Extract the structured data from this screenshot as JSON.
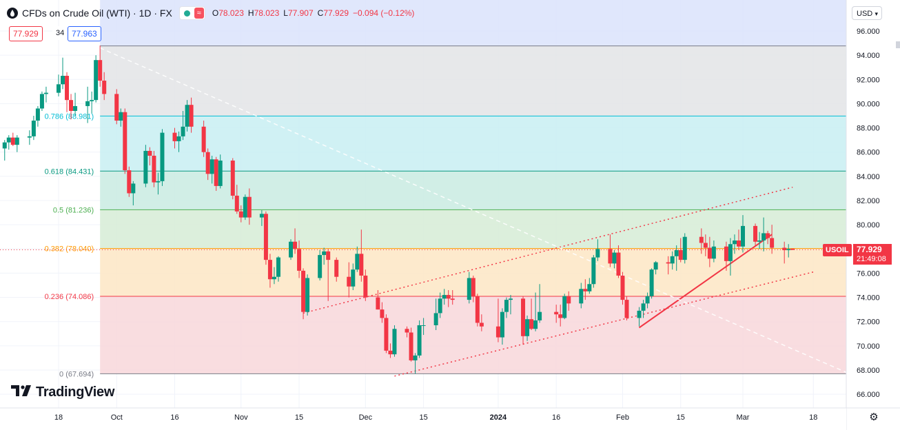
{
  "header": {
    "symbol": "CFDs on Crude Oil (WTI) · 1D · FX",
    "open_key": "O",
    "open": "78.023",
    "high_key": "H",
    "high": "78.023",
    "low_key": "L",
    "low": "77.907",
    "close_key": "C",
    "close": "77.929",
    "change": "−0.094 (−0.12%)",
    "approx_icon": "≈"
  },
  "trade": {
    "sell": "77.929",
    "spread": "34",
    "buy": "77.963"
  },
  "currency": "USD",
  "brand": "TradingView",
  "last": {
    "symbol": "USOIL",
    "price": "77.929",
    "countdown": "21:49:08"
  },
  "colors": {
    "up": "#089981",
    "down": "#f23645",
    "accent": "#2962ff"
  },
  "chart_data": {
    "type": "candlestick",
    "y_axis": {
      "ticks": [
        66,
        68,
        70,
        72,
        74,
        76,
        78,
        80,
        82,
        84,
        86,
        88,
        90,
        92,
        94,
        96
      ],
      "range": [
        65,
        97
      ],
      "position": "right"
    },
    "x_axis": {
      "labels": [
        {
          "text": "18",
          "date": "2023-09-18"
        },
        {
          "text": "Oct",
          "date": "2023-10-02"
        },
        {
          "text": "16",
          "date": "2023-10-16"
        },
        {
          "text": "Nov",
          "date": "2023-11-01"
        },
        {
          "text": "15",
          "date": "2023-11-15"
        },
        {
          "text": "Dec",
          "date": "2023-12-01"
        },
        {
          "text": "15",
          "date": "2023-12-15"
        },
        {
          "text": "2024",
          "date": "2024-01-02"
        },
        {
          "text": "16",
          "date": "2024-01-16"
        },
        {
          "text": "Feb",
          "date": "2024-02-01"
        },
        {
          "text": "15",
          "date": "2024-02-15"
        },
        {
          "text": "Mar",
          "date": "2024-03-01"
        },
        {
          "text": "18",
          "date": "2024-03-18"
        }
      ]
    },
    "fibonacci": {
      "levels": [
        {
          "ratio": "0",
          "price": 67.694,
          "label": "0 (67.694)",
          "color": "#787b86",
          "fill": "#f8d7da"
        },
        {
          "ratio": "0.236",
          "price": 74.086,
          "label": "0.236 (74.086)",
          "color": "#f23645",
          "fill": "#fde6c4"
        },
        {
          "ratio": "0.382",
          "price": 78.04,
          "label": "0.382 (78.040)",
          "color": "#ff9800",
          "fill": "#d6ecd6"
        },
        {
          "ratio": "0.5",
          "price": 81.236,
          "label": "0.5 (81.236)",
          "color": "#4caf50",
          "fill": "#c9ebe2"
        },
        {
          "ratio": "0.618",
          "price": 84.431,
          "label": "0.618 (84.431)",
          "color": "#089981",
          "fill": "#c8eff2"
        },
        {
          "ratio": "0.786",
          "price": 88.981,
          "label": "0.786 (88.981)",
          "color": "#00bcd4",
          "fill": "#e3e4e6"
        },
        {
          "ratio": "1",
          "price": 94.77,
          "label": "",
          "color": "#787b86",
          "fill": "#dbe3fb"
        }
      ],
      "start_date": "2023-09-28",
      "end_date": "2024-03-26"
    },
    "candles": [
      {
        "d": "2023-09-05",
        "o": 86.3,
        "h": 87.0,
        "l": 85.3,
        "c": 86.8
      },
      {
        "d": "2023-09-06",
        "o": 86.8,
        "h": 87.4,
        "l": 86.2,
        "c": 87.2
      },
      {
        "d": "2023-09-07",
        "o": 87.2,
        "h": 87.6,
        "l": 86.5,
        "c": 86.6
      },
      {
        "d": "2023-09-08",
        "o": 86.6,
        "h": 87.4,
        "l": 86.0,
        "c": 87.2
      },
      {
        "d": "2023-09-11",
        "o": 87.2,
        "h": 87.8,
        "l": 86.6,
        "c": 87.3
      },
      {
        "d": "2023-09-12",
        "o": 87.3,
        "h": 89.0,
        "l": 87.0,
        "c": 88.6
      },
      {
        "d": "2023-09-13",
        "o": 88.6,
        "h": 89.8,
        "l": 88.1,
        "c": 89.6
      },
      {
        "d": "2023-09-14",
        "o": 89.6,
        "h": 91.0,
        "l": 89.4,
        "c": 90.8
      },
      {
        "d": "2023-09-15",
        "o": 90.8,
        "h": 91.4,
        "l": 90.1,
        "c": 90.9
      },
      {
        "d": "2023-09-18",
        "o": 90.9,
        "h": 92.4,
        "l": 90.6,
        "c": 91.6
      },
      {
        "d": "2023-09-19",
        "o": 91.6,
        "h": 93.8,
        "l": 91.2,
        "c": 92.3
      },
      {
        "d": "2023-09-20",
        "o": 92.3,
        "h": 92.6,
        "l": 89.3,
        "c": 90.3
      },
      {
        "d": "2023-09-21",
        "o": 90.3,
        "h": 90.8,
        "l": 88.7,
        "c": 89.4
      },
      {
        "d": "2023-09-22",
        "o": 89.4,
        "h": 90.9,
        "l": 89.0,
        "c": 89.8
      },
      {
        "d": "2023-09-25",
        "o": 89.8,
        "h": 91.4,
        "l": 88.4,
        "c": 90.2
      },
      {
        "d": "2023-09-26",
        "o": 90.2,
        "h": 91.0,
        "l": 89.2,
        "c": 90.3
      },
      {
        "d": "2023-09-27",
        "o": 90.3,
        "h": 94.0,
        "l": 90.1,
        "c": 93.6
      },
      {
        "d": "2023-09-28",
        "o": 93.6,
        "h": 94.8,
        "l": 91.4,
        "c": 91.9
      },
      {
        "d": "2023-09-29",
        "o": 91.9,
        "h": 92.6,
        "l": 90.3,
        "c": 90.8
      },
      {
        "d": "2023-10-02",
        "o": 90.8,
        "h": 91.2,
        "l": 88.3,
        "c": 88.6
      },
      {
        "d": "2023-10-03",
        "o": 88.6,
        "h": 89.6,
        "l": 88.1,
        "c": 89.3
      },
      {
        "d": "2023-10-04",
        "o": 89.3,
        "h": 89.6,
        "l": 84.2,
        "c": 84.5
      },
      {
        "d": "2023-10-05",
        "o": 84.5,
        "h": 84.8,
        "l": 82.3,
        "c": 82.6
      },
      {
        "d": "2023-10-06",
        "o": 82.6,
        "h": 83.6,
        "l": 81.6,
        "c": 83.4
      },
      {
        "d": "2023-10-09",
        "o": 83.4,
        "h": 86.6,
        "l": 83.1,
        "c": 86.1
      },
      {
        "d": "2023-10-10",
        "o": 86.1,
        "h": 86.4,
        "l": 84.9,
        "c": 85.7
      },
      {
        "d": "2023-10-11",
        "o": 85.7,
        "h": 86.1,
        "l": 83.1,
        "c": 83.5
      },
      {
        "d": "2023-10-12",
        "o": 83.5,
        "h": 84.3,
        "l": 82.5,
        "c": 83.6
      },
      {
        "d": "2023-10-13",
        "o": 83.6,
        "h": 87.9,
        "l": 83.2,
        "c": 87.6
      },
      {
        "d": "2023-10-16",
        "o": 87.6,
        "h": 88.0,
        "l": 86.3,
        "c": 86.9
      },
      {
        "d": "2023-10-17",
        "o": 86.9,
        "h": 87.7,
        "l": 86.0,
        "c": 87.3
      },
      {
        "d": "2023-10-18",
        "o": 87.3,
        "h": 89.4,
        "l": 87.0,
        "c": 88.1
      },
      {
        "d": "2023-10-19",
        "o": 88.1,
        "h": 90.3,
        "l": 87.7,
        "c": 89.9
      },
      {
        "d": "2023-10-20",
        "o": 89.9,
        "h": 90.5,
        "l": 87.6,
        "c": 88.1
      },
      {
        "d": "2023-10-23",
        "o": 88.1,
        "h": 88.6,
        "l": 85.6,
        "c": 86.0
      },
      {
        "d": "2023-10-24",
        "o": 86.0,
        "h": 86.3,
        "l": 83.7,
        "c": 84.2
      },
      {
        "d": "2023-10-25",
        "o": 84.2,
        "h": 85.7,
        "l": 83.4,
        "c": 85.4
      },
      {
        "d": "2023-10-26",
        "o": 85.4,
        "h": 85.6,
        "l": 82.8,
        "c": 83.2
      },
      {
        "d": "2023-10-27",
        "o": 83.2,
        "h": 85.8,
        "l": 83.0,
        "c": 85.3
      },
      {
        "d": "2023-10-30",
        "o": 85.3,
        "h": 85.5,
        "l": 82.1,
        "c": 82.4
      },
      {
        "d": "2023-10-31",
        "o": 82.4,
        "h": 83.3,
        "l": 80.9,
        "c": 81.1
      },
      {
        "d": "2023-11-01",
        "o": 81.1,
        "h": 81.6,
        "l": 80.2,
        "c": 80.6
      },
      {
        "d": "2023-11-02",
        "o": 80.6,
        "h": 82.5,
        "l": 80.4,
        "c": 82.3
      },
      {
        "d": "2023-11-03",
        "o": 82.3,
        "h": 83.0,
        "l": 80.0,
        "c": 80.6
      },
      {
        "d": "2023-11-06",
        "o": 80.6,
        "h": 81.2,
        "l": 79.9,
        "c": 80.9
      },
      {
        "d": "2023-11-07",
        "o": 80.9,
        "h": 81.1,
        "l": 76.7,
        "c": 77.1
      },
      {
        "d": "2023-11-08",
        "o": 77.1,
        "h": 77.6,
        "l": 74.8,
        "c": 75.5
      },
      {
        "d": "2023-11-09",
        "o": 75.5,
        "h": 76.5,
        "l": 75.1,
        "c": 75.7
      },
      {
        "d": "2023-11-10",
        "o": 75.7,
        "h": 77.4,
        "l": 75.3,
        "c": 77.3
      },
      {
        "d": "2023-11-13",
        "o": 77.3,
        "h": 78.8,
        "l": 77.1,
        "c": 78.6
      },
      {
        "d": "2023-11-14",
        "o": 78.6,
        "h": 79.7,
        "l": 77.6,
        "c": 78.0
      },
      {
        "d": "2023-11-15",
        "o": 78.0,
        "h": 78.7,
        "l": 75.6,
        "c": 76.2
      },
      {
        "d": "2023-11-16",
        "o": 76.2,
        "h": 76.4,
        "l": 72.2,
        "c": 72.8
      },
      {
        "d": "2023-11-17",
        "o": 72.8,
        "h": 75.9,
        "l": 72.5,
        "c": 75.6
      },
      {
        "d": "2023-11-20",
        "o": 75.6,
        "h": 77.9,
        "l": 75.4,
        "c": 77.5
      },
      {
        "d": "2023-11-21",
        "o": 77.5,
        "h": 78.1,
        "l": 76.7,
        "c": 77.8
      },
      {
        "d": "2023-11-22",
        "o": 77.8,
        "h": 78.0,
        "l": 73.7,
        "c": 77.1
      },
      {
        "d": "2023-11-24",
        "o": 77.1,
        "h": 77.3,
        "l": 75.3,
        "c": 75.7
      },
      {
        "d": "2023-11-27",
        "o": 75.7,
        "h": 76.9,
        "l": 74.0,
        "c": 74.9
      },
      {
        "d": "2023-11-28",
        "o": 74.9,
        "h": 76.8,
        "l": 74.6,
        "c": 76.3
      },
      {
        "d": "2023-11-29",
        "o": 76.3,
        "h": 78.2,
        "l": 76.1,
        "c": 77.6
      },
      {
        "d": "2023-11-30",
        "o": 77.6,
        "h": 79.6,
        "l": 75.3,
        "c": 75.8
      },
      {
        "d": "2023-12-01",
        "o": 75.8,
        "h": 76.3,
        "l": 73.7,
        "c": 74.0
      },
      {
        "d": "2023-12-04",
        "o": 74.0,
        "h": 74.6,
        "l": 73.0,
        "c": 73.0
      },
      {
        "d": "2023-12-05",
        "o": 73.0,
        "h": 73.6,
        "l": 71.9,
        "c": 72.3
      },
      {
        "d": "2023-12-06",
        "o": 72.3,
        "h": 72.6,
        "l": 69.4,
        "c": 69.6
      },
      {
        "d": "2023-12-07",
        "o": 69.6,
        "h": 70.2,
        "l": 69.0,
        "c": 69.3
      },
      {
        "d": "2023-12-08",
        "o": 69.3,
        "h": 71.7,
        "l": 69.1,
        "c": 71.4
      },
      {
        "d": "2023-12-11",
        "o": 71.4,
        "h": 71.6,
        "l": 70.7,
        "c": 71.1
      },
      {
        "d": "2023-12-12",
        "o": 71.1,
        "h": 71.5,
        "l": 68.7,
        "c": 68.8
      },
      {
        "d": "2023-12-13",
        "o": 68.8,
        "h": 69.4,
        "l": 67.7,
        "c": 69.2
      },
      {
        "d": "2023-12-14",
        "o": 69.2,
        "h": 72.1,
        "l": 69.0,
        "c": 71.7
      },
      {
        "d": "2023-12-15",
        "o": 71.7,
        "h": 72.3,
        "l": 70.9,
        "c": 71.7
      },
      {
        "d": "2023-12-18",
        "o": 71.7,
        "h": 73.9,
        "l": 71.3,
        "c": 72.7
      },
      {
        "d": "2023-12-19",
        "o": 72.7,
        "h": 74.4,
        "l": 72.3,
        "c": 73.9
      },
      {
        "d": "2023-12-20",
        "o": 73.9,
        "h": 74.7,
        "l": 73.4,
        "c": 74.2
      },
      {
        "d": "2023-12-21",
        "o": 74.2,
        "h": 74.6,
        "l": 73.2,
        "c": 73.9
      },
      {
        "d": "2023-12-22",
        "o": 73.9,
        "h": 74.6,
        "l": 73.4,
        "c": 73.8
      },
      {
        "d": "2023-12-26",
        "o": 73.8,
        "h": 76.1,
        "l": 73.5,
        "c": 75.6
      },
      {
        "d": "2023-12-27",
        "o": 75.6,
        "h": 75.8,
        "l": 73.6,
        "c": 74.1
      },
      {
        "d": "2023-12-28",
        "o": 74.1,
        "h": 74.3,
        "l": 71.6,
        "c": 71.9
      },
      {
        "d": "2023-12-29",
        "o": 71.9,
        "h": 72.6,
        "l": 71.2,
        "c": 71.6
      },
      {
        "d": "2024-01-02",
        "o": 71.6,
        "h": 73.9,
        "l": 70.3,
        "c": 70.7
      },
      {
        "d": "2024-01-03",
        "o": 70.7,
        "h": 73.1,
        "l": 70.1,
        "c": 72.8
      },
      {
        "d": "2024-01-04",
        "o": 72.8,
        "h": 74.0,
        "l": 72.3,
        "c": 73.8
      },
      {
        "d": "2024-01-05",
        "o": 73.8,
        "h": 74.2,
        "l": 72.6,
        "c": 73.9
      },
      {
        "d": "2024-01-08",
        "o": 73.9,
        "h": 74.1,
        "l": 70.1,
        "c": 70.8
      },
      {
        "d": "2024-01-09",
        "o": 70.8,
        "h": 72.5,
        "l": 70.4,
        "c": 72.2
      },
      {
        "d": "2024-01-10",
        "o": 72.2,
        "h": 73.9,
        "l": 71.3,
        "c": 71.4
      },
      {
        "d": "2024-01-11",
        "o": 71.4,
        "h": 74.4,
        "l": 71.2,
        "c": 72.1
      },
      {
        "d": "2024-01-12",
        "o": 72.1,
        "h": 75.1,
        "l": 71.9,
        "c": 72.8
      },
      {
        "d": "2024-01-16",
        "o": 72.8,
        "h": 73.4,
        "l": 71.9,
        "c": 72.6
      },
      {
        "d": "2024-01-17",
        "o": 72.6,
        "h": 73.4,
        "l": 71.6,
        "c": 72.3
      },
      {
        "d": "2024-01-18",
        "o": 72.3,
        "h": 74.3,
        "l": 72.2,
        "c": 74.1
      },
      {
        "d": "2024-01-19",
        "o": 74.1,
        "h": 74.5,
        "l": 72.9,
        "c": 73.5
      },
      {
        "d": "2024-01-22",
        "o": 73.5,
        "h": 75.2,
        "l": 73.1,
        "c": 74.7
      },
      {
        "d": "2024-01-23",
        "o": 74.7,
        "h": 75.5,
        "l": 73.8,
        "c": 74.5
      },
      {
        "d": "2024-01-24",
        "o": 74.5,
        "h": 75.6,
        "l": 74.3,
        "c": 75.1
      },
      {
        "d": "2024-01-25",
        "o": 75.1,
        "h": 77.5,
        "l": 74.8,
        "c": 77.3
      },
      {
        "d": "2024-01-26",
        "o": 77.3,
        "h": 78.8,
        "l": 77.0,
        "c": 78.0
      },
      {
        "d": "2024-01-29",
        "o": 78.0,
        "h": 79.2,
        "l": 76.5,
        "c": 76.8
      },
      {
        "d": "2024-01-30",
        "o": 76.8,
        "h": 77.9,
        "l": 76.4,
        "c": 77.7
      },
      {
        "d": "2024-01-31",
        "o": 77.7,
        "h": 78.3,
        "l": 75.6,
        "c": 75.8
      },
      {
        "d": "2024-02-01",
        "o": 75.8,
        "h": 76.1,
        "l": 73.4,
        "c": 73.8
      },
      {
        "d": "2024-02-02",
        "o": 73.8,
        "h": 74.1,
        "l": 72.1,
        "c": 72.3
      },
      {
        "d": "2024-02-05",
        "o": 72.3,
        "h": 73.2,
        "l": 71.6,
        "c": 72.9
      },
      {
        "d": "2024-02-06",
        "o": 72.9,
        "h": 73.8,
        "l": 72.3,
        "c": 73.5
      },
      {
        "d": "2024-02-07",
        "o": 73.5,
        "h": 74.4,
        "l": 73.1,
        "c": 74.1
      },
      {
        "d": "2024-02-08",
        "o": 74.1,
        "h": 76.4,
        "l": 73.9,
        "c": 76.3
      },
      {
        "d": "2024-02-09",
        "o": 76.3,
        "h": 77.0,
        "l": 75.9,
        "c": 76.9
      },
      {
        "d": "2024-02-12",
        "o": 76.9,
        "h": 77.4,
        "l": 75.9,
        "c": 76.8
      },
      {
        "d": "2024-02-13",
        "o": 76.8,
        "h": 77.8,
        "l": 76.3,
        "c": 77.4
      },
      {
        "d": "2024-02-14",
        "o": 77.4,
        "h": 78.3,
        "l": 76.2,
        "c": 77.9
      },
      {
        "d": "2024-02-15",
        "o": 77.9,
        "h": 78.9,
        "l": 76.9,
        "c": 77.1
      },
      {
        "d": "2024-02-16",
        "o": 77.1,
        "h": 79.3,
        "l": 76.8,
        "c": 79.0
      },
      {
        "d": "2024-02-20",
        "o": 79.0,
        "h": 79.7,
        "l": 77.6,
        "c": 78.5
      },
      {
        "d": "2024-02-21",
        "o": 78.5,
        "h": 79.2,
        "l": 77.4,
        "c": 78.1
      },
      {
        "d": "2024-02-22",
        "o": 78.1,
        "h": 79.0,
        "l": 76.5,
        "c": 77.2
      },
      {
        "d": "2024-02-23",
        "o": 77.2,
        "h": 78.7,
        "l": 76.9,
        "c": 78.2
      },
      {
        "d": "2024-02-26",
        "o": 78.2,
        "h": 78.6,
        "l": 76.2,
        "c": 77.0
      },
      {
        "d": "2024-02-27",
        "o": 77.0,
        "h": 78.9,
        "l": 75.8,
        "c": 78.4
      },
      {
        "d": "2024-02-28",
        "o": 78.4,
        "h": 79.2,
        "l": 77.6,
        "c": 78.7
      },
      {
        "d": "2024-02-29",
        "o": 78.7,
        "h": 79.6,
        "l": 77.9,
        "c": 78.2
      },
      {
        "d": "2024-03-01",
        "o": 78.2,
        "h": 80.8,
        "l": 77.7,
        "c": 79.9
      },
      {
        "d": "2024-03-04",
        "o": 79.9,
        "h": 80.1,
        "l": 78.2,
        "c": 78.6
      },
      {
        "d": "2024-03-05",
        "o": 78.6,
        "h": 79.4,
        "l": 78.0,
        "c": 78.7
      },
      {
        "d": "2024-03-06",
        "o": 78.7,
        "h": 80.6,
        "l": 77.8,
        "c": 79.3
      },
      {
        "d": "2024-03-07",
        "o": 79.3,
        "h": 79.5,
        "l": 78.4,
        "c": 78.9
      },
      {
        "d": "2024-03-08",
        "o": 78.9,
        "h": 80.0,
        "l": 77.6,
        "c": 78.1
      },
      {
        "d": "2024-03-11",
        "o": 78.1,
        "h": 78.6,
        "l": 76.8,
        "c": 77.9
      },
      {
        "d": "2024-03-12",
        "o": 77.9,
        "h": 78.4,
        "l": 77.3,
        "c": 78.0
      },
      {
        "d": "2024-03-13",
        "o": 78.023,
        "h": 78.023,
        "l": 77.907,
        "c": 77.929
      }
    ],
    "trend_lines": [
      {
        "style": "dotted",
        "color": "#f23645",
        "from": {
          "d": "2023-11-16",
          "p": 72.7
        },
        "to": {
          "d": "2024-03-13",
          "p": 83.1
        }
      },
      {
        "style": "dotted",
        "color": "#f23645",
        "from": {
          "d": "2023-12-08",
          "p": 67.5
        },
        "to": {
          "d": "2024-03-18",
          "p": 76.1
        }
      },
      {
        "style": "solid",
        "color": "#f23645",
        "from": {
          "d": "2024-02-05",
          "p": 71.5
        },
        "to": {
          "d": "2024-03-08",
          "p": 79.2
        }
      },
      {
        "style": "dashed",
        "color": "#ffffff",
        "from": {
          "d": "2023-09-28",
          "p": 94.6
        },
        "to": {
          "d": "2024-03-26",
          "p": 67.8
        }
      }
    ]
  }
}
